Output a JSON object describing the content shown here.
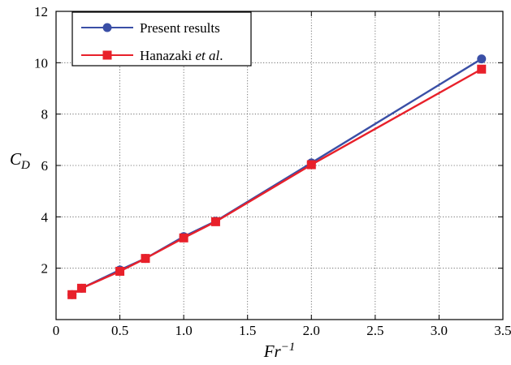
{
  "chart_data": {
    "type": "line",
    "xlabel": {
      "base": "Fr",
      "sup": "−1"
    },
    "ylabel": {
      "base": "C",
      "sub": "D"
    },
    "xlim": [
      0,
      3.5
    ],
    "ylim": [
      0,
      12
    ],
    "x_ticks": [
      {
        "value": 0,
        "label": "0"
      },
      {
        "value": 0.5,
        "label": "0.5"
      },
      {
        "value": 1.0,
        "label": "1.0"
      },
      {
        "value": 1.5,
        "label": "1.5"
      },
      {
        "value": 2.0,
        "label": "2.0"
      },
      {
        "value": 2.5,
        "label": "2.5"
      },
      {
        "value": 3.0,
        "label": "3.0"
      },
      {
        "value": 3.5,
        "label": "3.5"
      }
    ],
    "y_ticks": [
      {
        "value": 2,
        "label": "2"
      },
      {
        "value": 4,
        "label": "4"
      },
      {
        "value": 6,
        "label": "6"
      },
      {
        "value": 8,
        "label": "8"
      },
      {
        "value": 10,
        "label": "10"
      },
      {
        "value": 12,
        "label": "12"
      }
    ],
    "grid": true,
    "legend_position": "top-left",
    "series": [
      {
        "name": "Present results",
        "color": "#3a4fa6",
        "marker": "circle",
        "x": [
          0.125,
          0.2,
          0.5,
          0.7,
          1.0,
          1.25,
          2.0,
          3.333
        ],
        "y": [
          0.97,
          1.22,
          1.93,
          2.38,
          3.23,
          3.83,
          6.1,
          10.15
        ]
      },
      {
        "name_parts": [
          {
            "text": "Hanazaki ",
            "italic": false
          },
          {
            "text": "et al",
            "italic": true
          },
          {
            "text": ".",
            "italic": false
          }
        ],
        "color": "#e8202a",
        "marker": "square",
        "x": [
          0.125,
          0.2,
          0.5,
          0.7,
          1.0,
          1.25,
          2.0,
          3.333
        ],
        "y": [
          0.97,
          1.22,
          1.88,
          2.38,
          3.18,
          3.81,
          6.03,
          9.75
        ]
      }
    ]
  }
}
